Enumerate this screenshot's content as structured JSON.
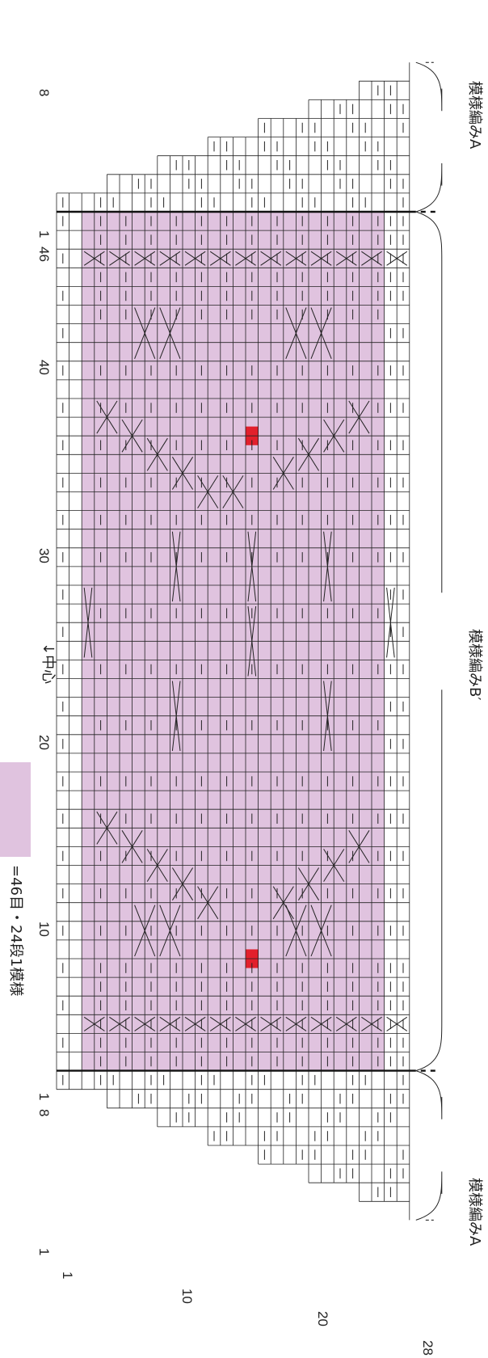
{
  "diagram": {
    "grid": {
      "columns": 28,
      "pattern_rows": 46,
      "extra_rows_each_side": 8,
      "column_numbers": [
        "1",
        "10",
        "20",
        "28"
      ],
      "row_numbers_bottom": [
        "1",
        "8"
      ],
      "row_numbers_pattern": [
        "1",
        "10",
        "20",
        "30",
        "40",
        "46"
      ],
      "row_numbers_top": [
        "1",
        "8"
      ]
    },
    "center_marker": "↓中心",
    "section_labels": {
      "bottom": "模様編みA",
      "middle": "模様編みB′",
      "top": "模様編みA"
    },
    "legend": {
      "text": "=46目・24段1模様",
      "swatch_color": "#e0c3df"
    },
    "colors": {
      "pattern_fill": "#e0c3df",
      "highlight_cell": "#e2202c",
      "grid_line": "#222222"
    },
    "symbols": [
      "purl-stitch",
      "cable-cross",
      "twisted-cross"
    ]
  }
}
